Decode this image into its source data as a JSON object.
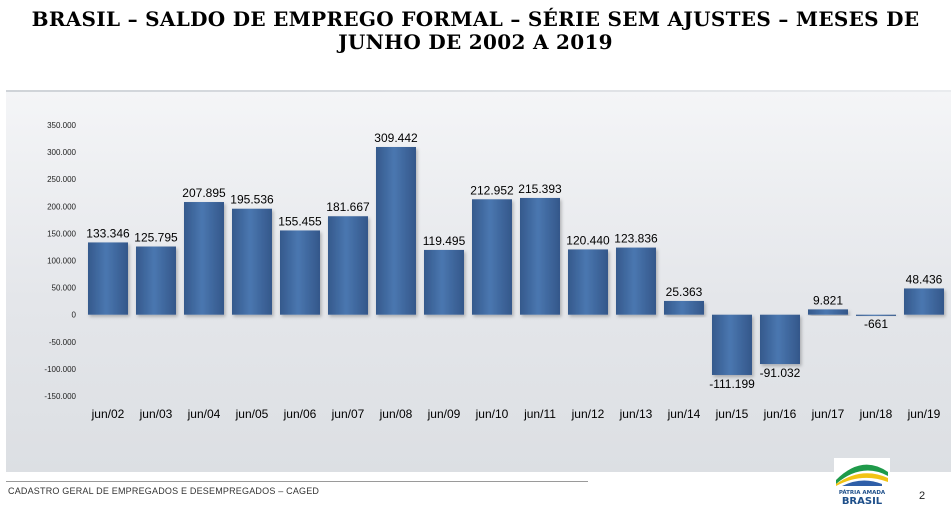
{
  "title": "BRASIL – SALDO DE EMPREGO FORMAL – SÉRIE SEM AJUSTES – MESES DE JUNHO DE 2002 A 2019",
  "title_line1": "BRASIL – SALDO DE EMPREGO FORMAL – SÉRIE SEM AJUSTES – MESES DE",
  "title_line2": "JUNHO DE 2002 A 2019",
  "footer": "CADASTRO GERAL DE EMPREGADOS E DESEMPREGADOS – CAGED",
  "page_number": "2",
  "logo": {
    "line1": "PÁTRIA AMADA",
    "line2": "BRASIL"
  },
  "colors": {
    "bar": "#3f6aa0",
    "bar_dark": "#2e5283",
    "text": "#000000"
  },
  "chart_data": {
    "type": "bar",
    "title": "BRASIL – SALDO DE EMPREGO FORMAL – SÉRIE SEM AJUSTES – MESES DE JUNHO DE 2002 A 2019",
    "categories": [
      "jun/02",
      "jun/03",
      "jun/04",
      "jun/05",
      "jun/06",
      "jun/07",
      "jun/08",
      "jun/09",
      "jun/10",
      "jun/11",
      "jun/12",
      "jun/13",
      "jun/14",
      "jun/15",
      "jun/16",
      "jun/17",
      "jun/18",
      "jun/19"
    ],
    "values": [
      133346,
      125795,
      207895,
      195536,
      155455,
      181667,
      309442,
      119495,
      212952,
      215393,
      120440,
      123836,
      25363,
      -111199,
      -91032,
      9821,
      -661,
      48436
    ],
    "value_labels": [
      "133.346",
      "125.795",
      "207.895",
      "195.536",
      "155.455",
      "181.667",
      "309.442",
      "119.495",
      "212.952",
      "215.393",
      "120.440",
      "123.836",
      "25.363",
      "-111.199",
      "-91.032",
      "9.821",
      "-661",
      "48.436"
    ],
    "yticks": [
      350000,
      300000,
      250000,
      200000,
      150000,
      100000,
      50000,
      0,
      -50000,
      -100000,
      -150000
    ],
    "ytick_labels": [
      "350.000",
      "300.000",
      "250.000",
      "200.000",
      "150.000",
      "100.000",
      "50.000",
      "0",
      "-50.000",
      "-100.000",
      "-150.000"
    ],
    "ylim": [
      -150000,
      350000
    ],
    "xlabel": "",
    "ylabel": "",
    "grid": false,
    "legend": "none"
  }
}
